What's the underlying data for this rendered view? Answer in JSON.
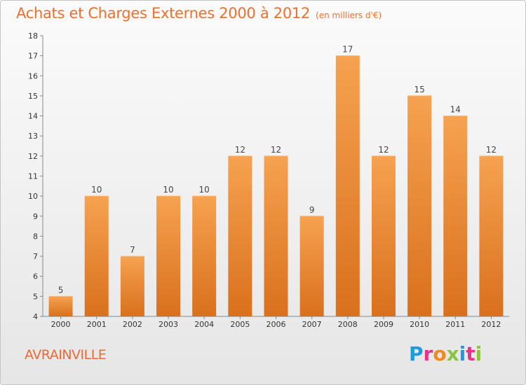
{
  "header": {
    "title": "Achats et Charges Externes 2000 à 2012",
    "unit": "(en milliers d'€)"
  },
  "footer": {
    "city": "AVRAINVILLE",
    "brand_letters": [
      {
        "ch": "P",
        "color": "#1c9be0"
      },
      {
        "ch": "r",
        "color": "#e8328a"
      },
      {
        "ch": "o",
        "color": "#f08a1c"
      },
      {
        "ch": "x",
        "color": "#8cc63e"
      },
      {
        "ch": "i",
        "color": "#1c9be0"
      },
      {
        "ch": "t",
        "color": "#e8328a"
      },
      {
        "ch": "i",
        "color": "#8cc63e"
      }
    ]
  },
  "chart_data": {
    "type": "bar",
    "title": "Achats et Charges Externes 2000 à 2012",
    "subtitle": "(en milliers d'€)",
    "categories": [
      "2000",
      "2001",
      "2002",
      "2003",
      "2004",
      "2005",
      "2006",
      "2007",
      "2008",
      "2009",
      "2010",
      "2011",
      "2012"
    ],
    "values": [
      5,
      10,
      7,
      10,
      10,
      12,
      12,
      9,
      17,
      12,
      15,
      14,
      12
    ],
    "ylim": [
      4,
      18
    ],
    "yticks": [
      4,
      5,
      6,
      7,
      8,
      9,
      10,
      11,
      12,
      13,
      14,
      15,
      16,
      17,
      18
    ],
    "grid": false,
    "bar_color": "#f0923a",
    "legend": "none"
  }
}
